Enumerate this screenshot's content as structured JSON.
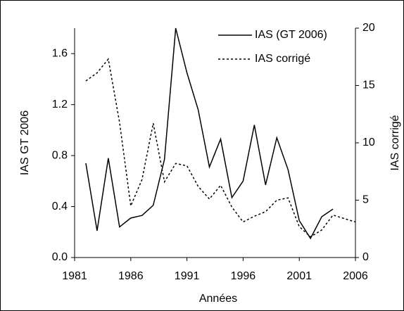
{
  "chart_data": {
    "type": "line",
    "x_label": "Années",
    "y_label": "IAS GT 2006",
    "y2_label": "IAS corrigé",
    "xlim": [
      1981,
      2006
    ],
    "xticks": [
      1981,
      1986,
      1991,
      1996,
      2001,
      2006
    ],
    "ylim": [
      0,
      1.8
    ],
    "yticks": [
      {
        "value": 0,
        "label": "0.0"
      },
      0.4,
      0.8,
      1.2,
      1.6
    ],
    "y2lim": [
      0,
      20
    ],
    "y2ticks": [
      0,
      5,
      10,
      15,
      20
    ],
    "legend": "top-right",
    "series": [
      {
        "name": "IAS (GT 2006)",
        "color": "#000000",
        "dash": "solid",
        "x": [
          1982,
          1983,
          1984,
          1985,
          1986,
          1987,
          1988,
          1989,
          1990,
          1991,
          1992,
          1993,
          1994,
          1995,
          1996,
          1997,
          1998,
          1999,
          2000,
          2001,
          2002,
          2003,
          2004
        ],
        "values": [
          0.74,
          0.21,
          0.78,
          0.24,
          0.31,
          0.33,
          0.41,
          0.77,
          1.8,
          1.45,
          1.16,
          0.71,
          0.93,
          0.47,
          0.6,
          1.04,
          0.57,
          0.94,
          0.69,
          0.29,
          0.15,
          0.32,
          0.38
        ]
      },
      {
        "name": "IAS corrigé",
        "color": "#000000",
        "dash": "dotted",
        "axis": "y2",
        "x": [
          1982,
          1983,
          1984,
          1985,
          1986,
          1987,
          1988,
          1989,
          1990,
          1991,
          1992,
          1993,
          1994,
          1995,
          1996,
          1997,
          1998,
          1999,
          2000,
          2001,
          2002,
          2003,
          2004,
          2005,
          2006
        ],
        "values": [
          15.4,
          16.1,
          17.3,
          11.8,
          4.5,
          6.8,
          11.7,
          6.6,
          8.2,
          8.0,
          6.2,
          5.1,
          6.3,
          4.4,
          3.1,
          3.6,
          4.0,
          5.0,
          5.2,
          2.7,
          1.8,
          2.4,
          3.7,
          3.4,
          3.1
        ]
      }
    ]
  }
}
